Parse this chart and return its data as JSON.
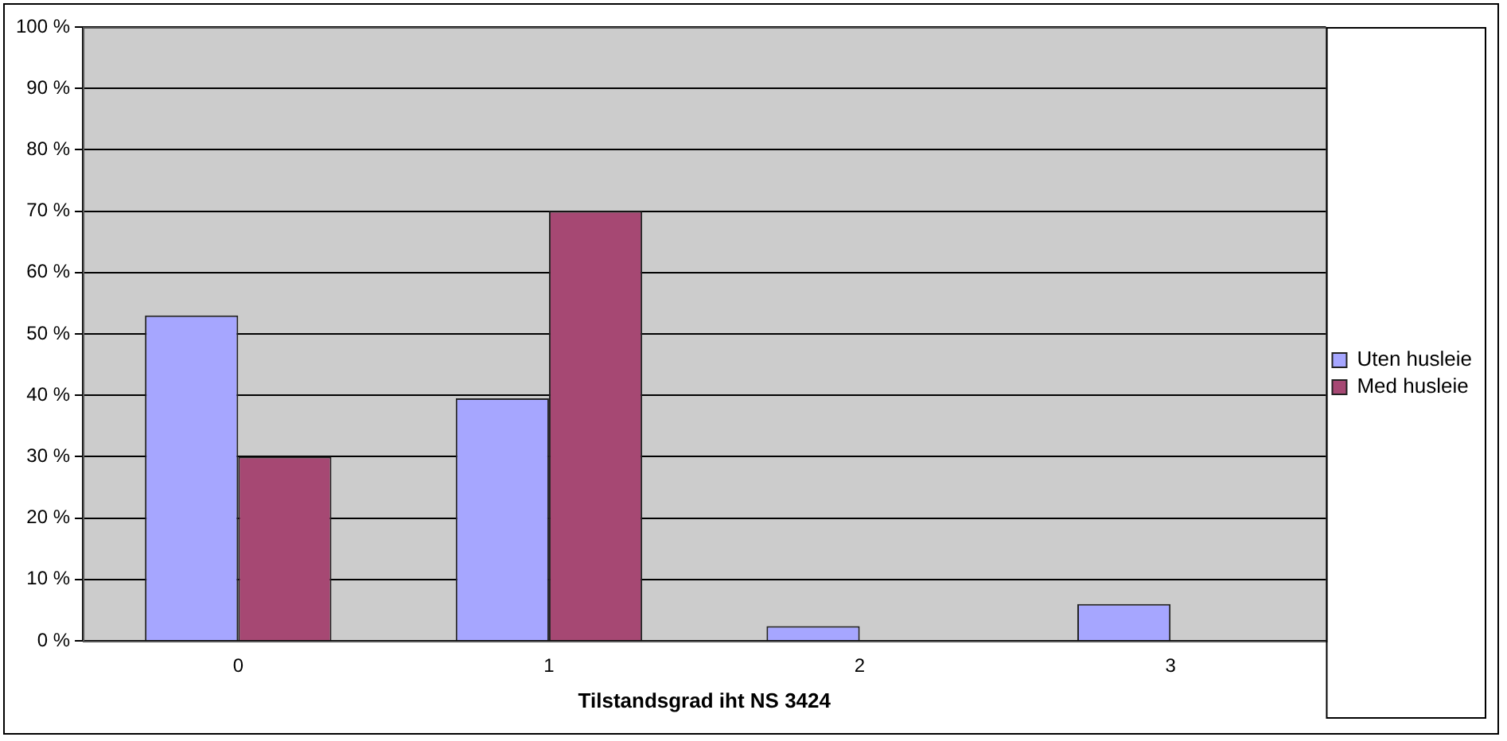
{
  "chart_data": {
    "type": "bar",
    "xlabel": "Tilstandsgrad iht NS 3424",
    "categories": [
      "0",
      "1",
      "2",
      "3"
    ],
    "series": [
      {
        "name": "Uten husleie",
        "color": "#a6a6ff",
        "values": [
          53,
          39.5,
          2.4,
          6
        ]
      },
      {
        "name": "Med husleie",
        "color": "#a64873",
        "values": [
          30,
          70,
          null,
          null
        ]
      }
    ],
    "ylim": [
      0,
      100
    ],
    "yticks": [
      {
        "value": 0,
        "label": "0 %"
      },
      {
        "value": 10,
        "label": "10 %"
      },
      {
        "value": 20,
        "label": "20 %"
      },
      {
        "value": 30,
        "label": "30 %"
      },
      {
        "value": 40,
        "label": "40 %"
      },
      {
        "value": 50,
        "label": "50 %"
      },
      {
        "value": 60,
        "label": "60 %"
      },
      {
        "value": 70,
        "label": "70 %"
      },
      {
        "value": 80,
        "label": "80 %"
      },
      {
        "value": 90,
        "label": "90 %"
      },
      {
        "value": 100,
        "label": "100 %"
      }
    ],
    "grid": "y",
    "legend": "right"
  }
}
